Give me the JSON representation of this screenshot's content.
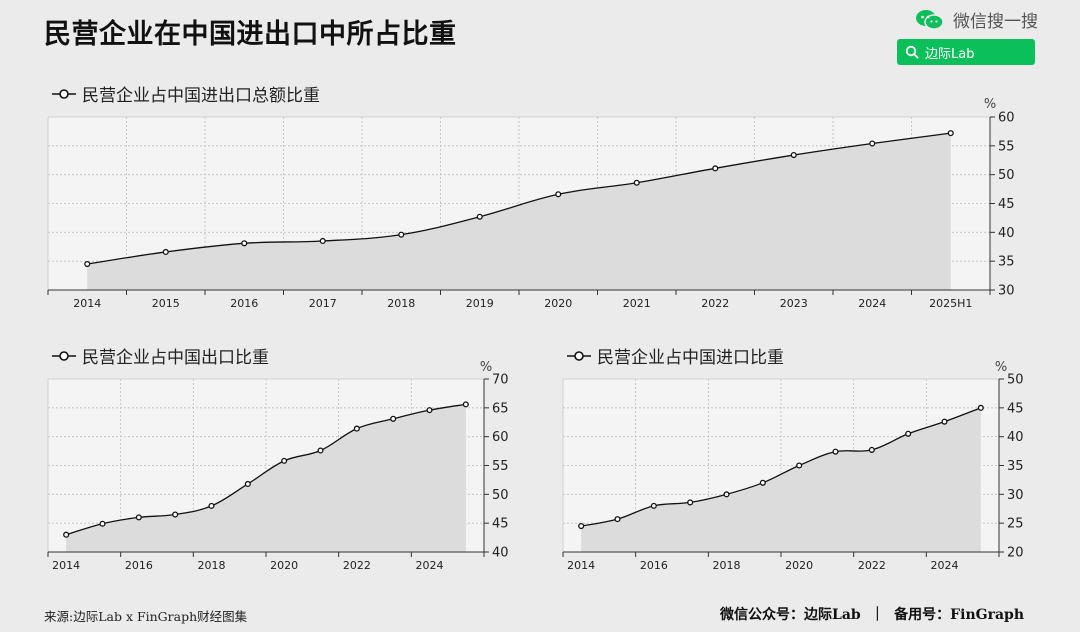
{
  "page": {
    "title": "民营企业在中国进出口中所占比重",
    "source": "来源:边际Lab x FinGraph财经图集",
    "footer": "微信公众号：边际Lab  ｜  备用号：FinGraph"
  },
  "wechat": {
    "label": "微信搜一搜",
    "search_text": "边际Lab",
    "icon": "wechat-icon",
    "accent": "#0bbf5a"
  },
  "chart_data": [
    {
      "type": "area",
      "title": "民营企业占中国进出口总额比重",
      "unit": "%",
      "categories": [
        "2014",
        "2015",
        "2016",
        "2017",
        "2018",
        "2019",
        "2020",
        "2021",
        "2022",
        "2023",
        "2024",
        "2025H1"
      ],
      "values": [
        34.5,
        36.6,
        38.1,
        38.5,
        39.6,
        42.7,
        46.6,
        48.6,
        51.1,
        53.4,
        55.4,
        57.2
      ],
      "ylim": [
        30,
        60
      ],
      "yticks": [
        30,
        35,
        40,
        45,
        50,
        55,
        60
      ],
      "grid": true,
      "legend": "top-left"
    },
    {
      "type": "area",
      "title": "民营企业占中国出口比重",
      "unit": "%",
      "x": [
        2014,
        2015,
        2016,
        2017,
        2018,
        2019,
        2020,
        2021,
        2022,
        2023,
        2024,
        2025
      ],
      "xticks": [
        "2014",
        "2016",
        "2018",
        "2020",
        "2022",
        "2024"
      ],
      "values": [
        43.0,
        44.9,
        46.0,
        46.5,
        48.0,
        51.8,
        55.8,
        57.6,
        61.4,
        63.1,
        64.6,
        65.6
      ],
      "ylim": [
        40,
        70
      ],
      "yticks": [
        40,
        45,
        50,
        55,
        60,
        65,
        70
      ],
      "grid": true,
      "legend": "top-left"
    },
    {
      "type": "area",
      "title": "民营企业占中国进口比重",
      "unit": "%",
      "x": [
        2014,
        2015,
        2016,
        2017,
        2018,
        2019,
        2020,
        2021,
        2022,
        2023,
        2024,
        2025
      ],
      "xticks": [
        "2014",
        "2016",
        "2018",
        "2020",
        "2022",
        "2024"
      ],
      "values": [
        24.5,
        25.7,
        28.0,
        28.6,
        30.0,
        32.0,
        35.0,
        37.4,
        37.7,
        40.5,
        42.6,
        45.0
      ],
      "ylim": [
        20,
        50
      ],
      "yticks": [
        20,
        25,
        30,
        35,
        40,
        45,
        50
      ],
      "grid": true,
      "legend": "top-left"
    }
  ]
}
